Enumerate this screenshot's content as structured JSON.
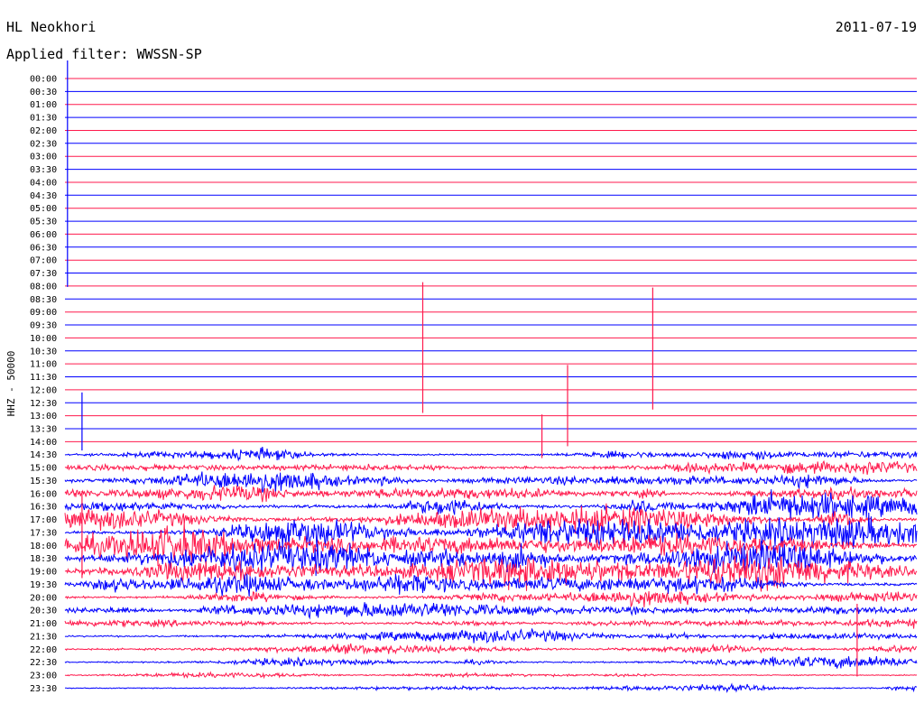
{
  "header": {
    "station": "HL Neokhori",
    "date": "2011-07-19",
    "filter_text": "Applied filter: WWSSN-SP"
  },
  "colors": {
    "even_row": "#ff1a4d",
    "odd_row": "#0000ff",
    "background": "#ffffff"
  },
  "chart_data": {
    "type": "line",
    "ylabel": "HHZ - 50000",
    "row_labels": [
      "00:00",
      "00:30",
      "01:00",
      "01:30",
      "02:00",
      "02:30",
      "03:00",
      "03:30",
      "04:00",
      "04:30",
      "05:00",
      "05:30",
      "06:00",
      "06:30",
      "07:00",
      "07:30",
      "08:00",
      "08:30",
      "09:00",
      "09:30",
      "10:00",
      "10:30",
      "11:00",
      "11:30",
      "12:00",
      "12:30",
      "13:00",
      "13:30",
      "14:00",
      "14:30",
      "15:00",
      "15:30",
      "16:00",
      "16:30",
      "17:00",
      "17:30",
      "18:00",
      "18:30",
      "19:00",
      "19:30",
      "20:00",
      "20:30",
      "21:00",
      "21:30",
      "22:00",
      "22:30",
      "23:00",
      "23:30"
    ],
    "activity": [
      0,
      0,
      0,
      0,
      0,
      0,
      0,
      0,
      0,
      0,
      0,
      0,
      0,
      0,
      0,
      0,
      0,
      0,
      0,
      0,
      0,
      0,
      0,
      0,
      0,
      0,
      0,
      0,
      0,
      0.45,
      0.55,
      0.75,
      0.7,
      0.9,
      0.9,
      1.0,
      1.0,
      1.0,
      1.0,
      0.8,
      0.6,
      0.55,
      0.5,
      0.45,
      0.45,
      0.4,
      0.3,
      0.3
    ],
    "events": [
      {
        "row": "04:30",
        "x_fraction": 0.003,
        "amplitude": 10.0
      },
      {
        "row": "11:00",
        "x_fraction": 0.42,
        "amplitude": 4.5
      },
      {
        "row": "11:00",
        "x_fraction": 0.69,
        "amplitude": 4.2
      },
      {
        "row": "13:00",
        "x_fraction": 0.59,
        "amplitude": 2.8
      },
      {
        "row": "13:30",
        "x_fraction": 0.02,
        "amplitude": 2.0
      },
      {
        "row": "14:00",
        "x_fraction": 0.56,
        "amplitude": 1.5
      },
      {
        "row": "18:00",
        "x_fraction": 0.02,
        "amplitude": 3.0
      },
      {
        "row": "22:00",
        "x_fraction": 0.93,
        "amplitude": 2.5
      }
    ]
  }
}
